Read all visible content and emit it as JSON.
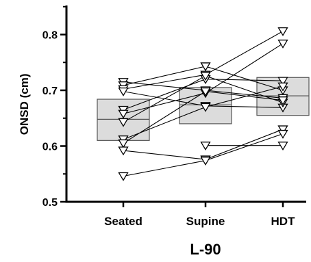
{
  "chart_data": {
    "type": "box-and-paired-points",
    "xlabel": "L-90",
    "ylabel": "ONSD (cm)",
    "categories": [
      "Seated",
      "Supine",
      "HDT"
    ],
    "ylim": [
      0.5,
      0.85
    ],
    "yticks": [
      0.5,
      0.6,
      0.7,
      0.8
    ],
    "ytick_labels": [
      "0.5",
      "0.6",
      "0.7",
      "0.8"
    ],
    "grid": false,
    "legend": "none",
    "colors": {
      "box_fill": "#dcdcdc",
      "box_edge": "#555555",
      "line": "#000000",
      "marker_edge": "#000000",
      "marker_fill": "#ffffff"
    },
    "boxes": [
      {
        "category": "Seated",
        "q1": 0.61,
        "median": 0.648,
        "q3": 0.684
      },
      {
        "category": "Supine",
        "q1": 0.64,
        "median": 0.674,
        "q3": 0.705
      },
      {
        "category": "HDT",
        "q1": 0.655,
        "median": 0.69,
        "q3": 0.723
      }
    ],
    "subjects": [
      [
        0.715,
        0.7,
        0.686
      ],
      [
        0.709,
        0.743,
        0.7
      ],
      [
        0.702,
        0.728,
        0.806
      ],
      [
        0.698,
        0.672,
        0.669
      ],
      [
        0.665,
        0.72,
        0.717
      ],
      [
        0.658,
        0.695,
        0.784
      ],
      [
        0.643,
        0.726,
        0.678
      ],
      [
        0.612,
        0.67,
        0.707
      ],
      [
        0.605,
        0.698,
        0.682
      ],
      [
        0.592,
        0.576,
        0.63
      ],
      [
        0.546,
        0.574,
        0.622
      ],
      [
        null,
        0.601,
        0.601
      ]
    ]
  }
}
